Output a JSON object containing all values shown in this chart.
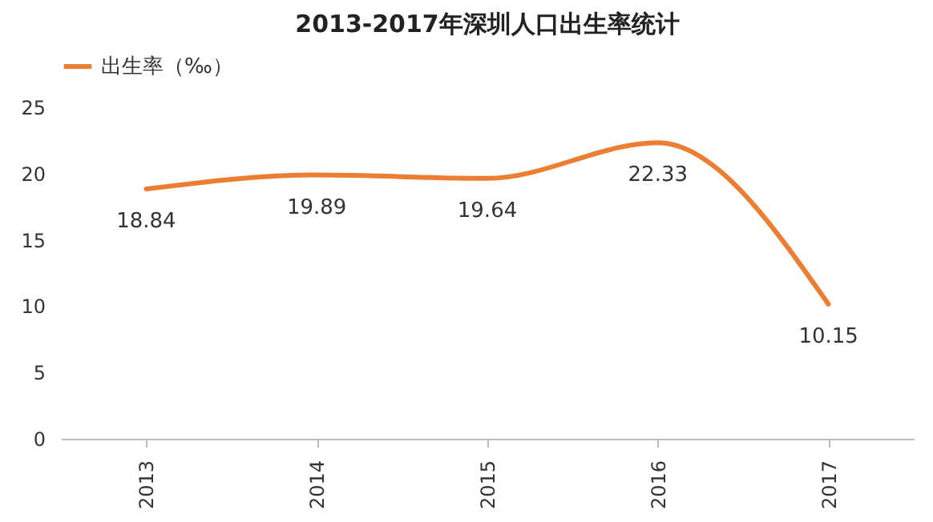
{
  "chart_data": {
    "type": "line",
    "title": "2013-2017年深圳人口出生率统计",
    "categories": [
      "2013",
      "2014",
      "2015",
      "2016",
      "2017"
    ],
    "series": [
      {
        "name": "出生率（‰）",
        "color": "#ed7d31",
        "values": [
          18.84,
          19.89,
          19.64,
          22.33,
          10.15
        ]
      }
    ],
    "ylim": [
      0,
      25
    ],
    "yticks": [
      0,
      5,
      10,
      15,
      20,
      25
    ],
    "grid": false,
    "legend": "top",
    "marker": "none",
    "line_style": "solid",
    "data_labels": true
  }
}
